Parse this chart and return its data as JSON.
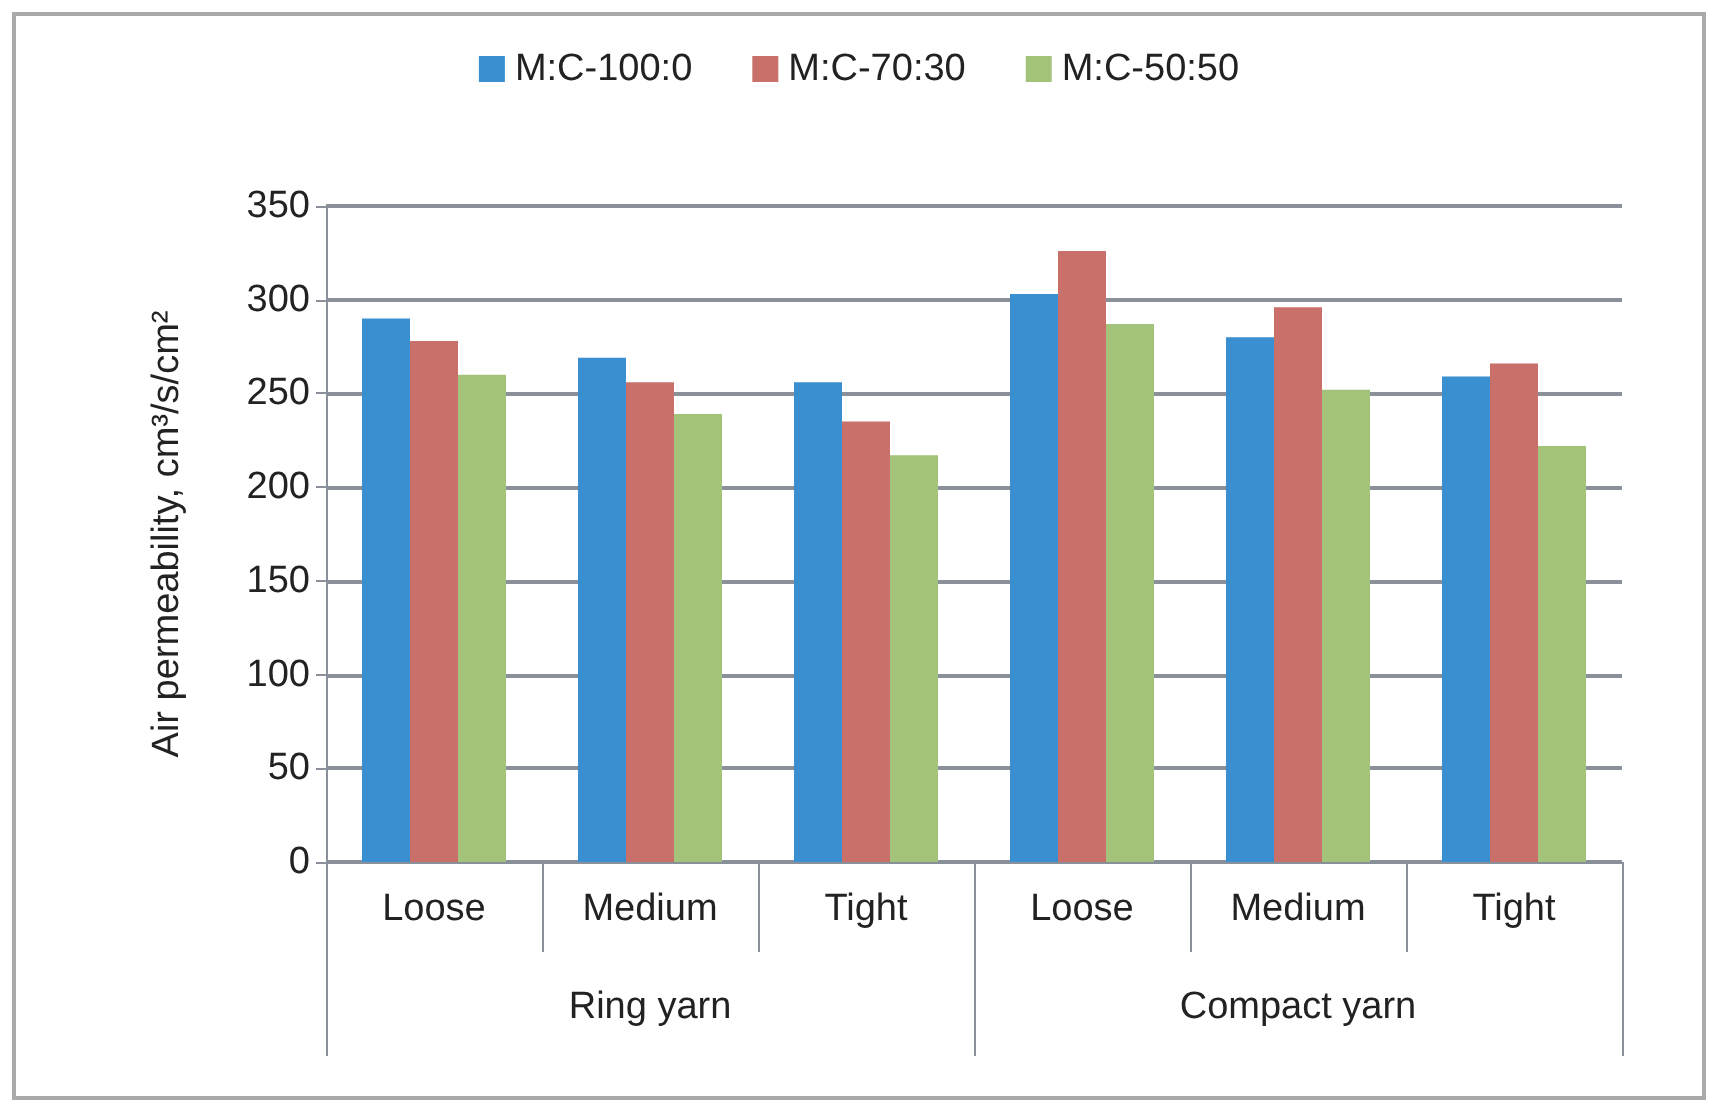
{
  "chart_data": {
    "type": "bar",
    "ylabel": "Air permeability, cm³/s/cm²",
    "categories": [
      "Loose",
      "Medium",
      "Tight",
      "Loose",
      "Medium",
      "Tight"
    ],
    "annotations": [
      "Ring yarn",
      "Compact yarn"
    ],
    "series": [
      {
        "name": "M:C-100:0",
        "color": "#3a8fd0",
        "values": [
          290,
          269,
          256,
          303,
          280,
          259
        ]
      },
      {
        "name": "M:C-70:30",
        "color": "#c9706a",
        "values": [
          278,
          256,
          235,
          326,
          296,
          266
        ]
      },
      {
        "name": "M:C-50:50",
        "color": "#a3c27a",
        "values": [
          260,
          239,
          217,
          287,
          252,
          222
        ]
      }
    ],
    "ylim": [
      0,
      350
    ],
    "yticks": [
      0,
      50,
      100,
      150,
      200,
      250,
      300,
      350
    ],
    "grid": "y",
    "legend": "top"
  }
}
